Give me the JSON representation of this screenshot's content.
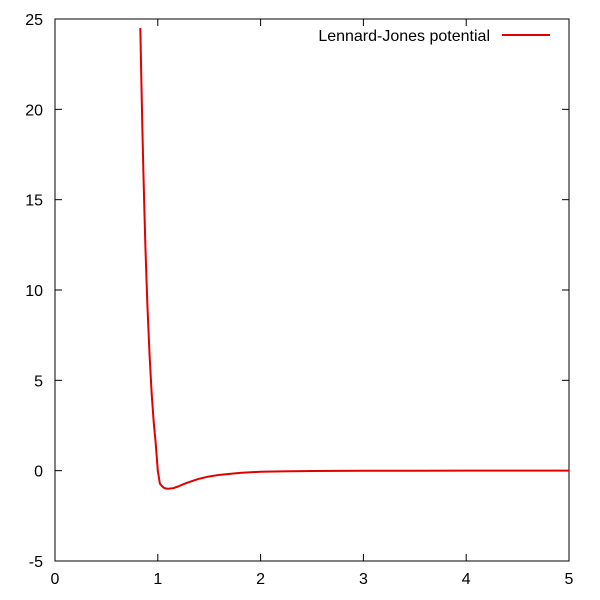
{
  "chart_data": {
    "type": "line",
    "title": "",
    "xlabel": "",
    "ylabel": "",
    "xlim": [
      0,
      5
    ],
    "ylim": [
      -5,
      25
    ],
    "x_ticks": [
      0,
      1,
      2,
      3,
      4,
      5
    ],
    "y_ticks": [
      -5,
      0,
      5,
      10,
      15,
      20,
      25
    ],
    "x_tick_labels": [
      "0",
      "1",
      "2",
      "3",
      "4",
      "5"
    ],
    "y_tick_labels": [
      "-5",
      "0",
      "5",
      "10",
      "15",
      "20",
      "25"
    ],
    "grid": false,
    "legend_position": "top-right",
    "series": [
      {
        "name": "Lennard-Jones potential",
        "color": "#e00000",
        "x": [
          0.83,
          0.84,
          0.85,
          0.86,
          0.87,
          0.88,
          0.89,
          0.9,
          0.92,
          0.94,
          0.96,
          0.98,
          1.0,
          1.02,
          1.04,
          1.06,
          1.08,
          1.1,
          1.12,
          1.15,
          1.2,
          1.25,
          1.3,
          1.4,
          1.5,
          1.6,
          1.8,
          2.0,
          2.2,
          2.5,
          3.0,
          3.5,
          4.0,
          4.5,
          5.0
        ],
        "y": [
          24.5,
          21.6,
          18.9,
          16.5,
          14.3,
          12.3,
          10.6,
          9.0,
          6.4,
          4.3,
          2.7,
          1.49,
          0.0,
          -0.71,
          -0.86,
          -0.95,
          -0.99,
          -1.0,
          -0.99,
          -0.97,
          -0.87,
          -0.75,
          -0.64,
          -0.45,
          -0.32,
          -0.23,
          -0.12,
          -0.06,
          -0.04,
          -0.016,
          -0.005,
          -0.002,
          -0.001,
          -0.0006,
          -0.0003
        ]
      }
    ]
  }
}
